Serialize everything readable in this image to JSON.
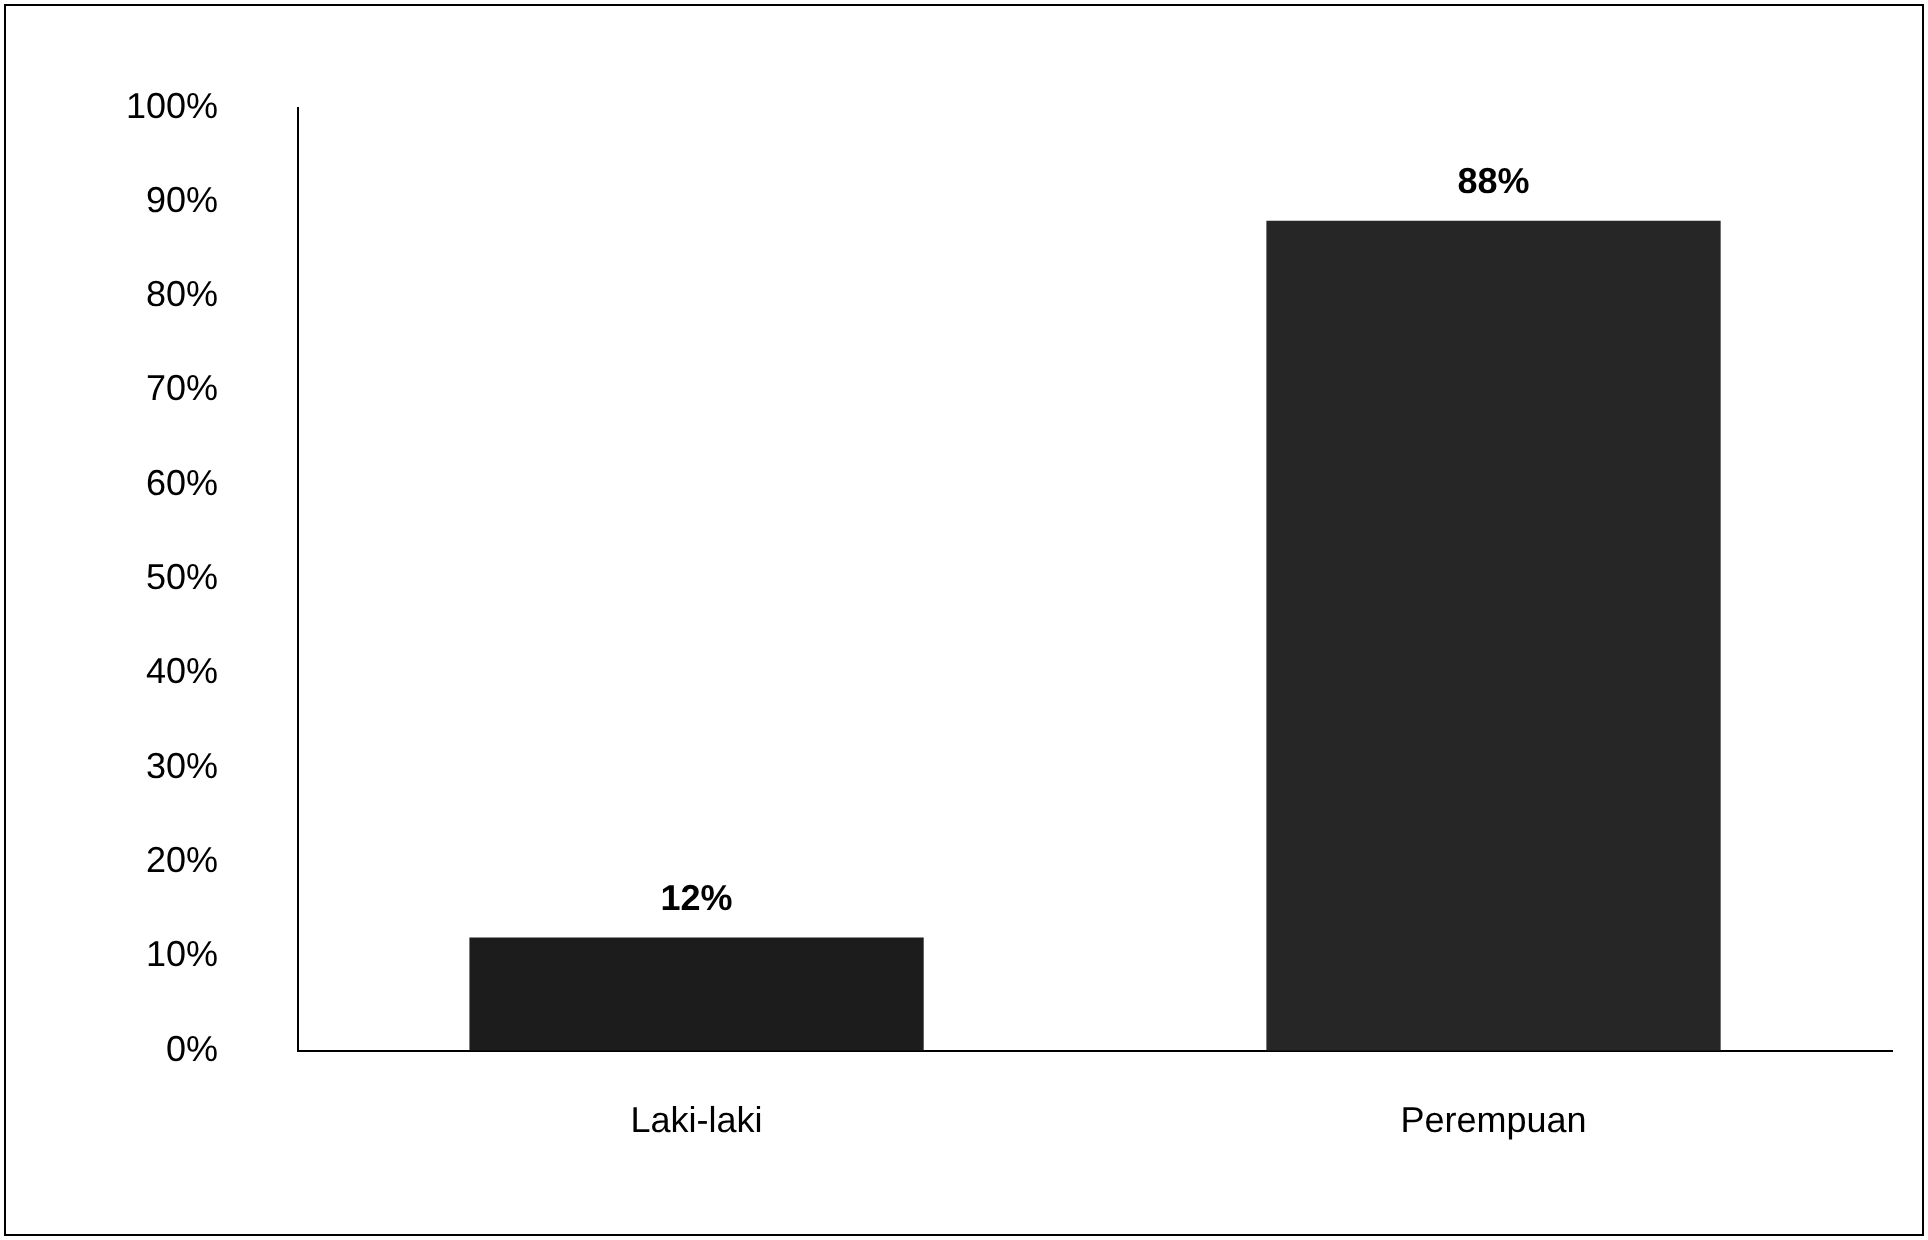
{
  "chart_data": {
    "type": "bar",
    "categories": [
      "Laki-laki",
      "Perempuan"
    ],
    "values": [
      12,
      88
    ],
    "colors": [
      "#1c1c1c",
      "#262626"
    ],
    "value_labels": [
      "12%",
      "88%"
    ],
    "ylim": [
      0,
      100
    ],
    "yticks": [
      {
        "value": 0,
        "label": "0%"
      },
      {
        "value": 10,
        "label": "10%"
      },
      {
        "value": 20,
        "label": "20%"
      },
      {
        "value": 30,
        "label": "30%"
      },
      {
        "value": 40,
        "label": "40%"
      },
      {
        "value": 50,
        "label": "50%"
      },
      {
        "value": 60,
        "label": "60%"
      },
      {
        "value": 70,
        "label": "70%"
      },
      {
        "value": 80,
        "label": "80%"
      },
      {
        "value": 90,
        "label": "90%"
      },
      {
        "value": 100,
        "label": "100%"
      }
    ],
    "grid": false,
    "legend": false
  }
}
